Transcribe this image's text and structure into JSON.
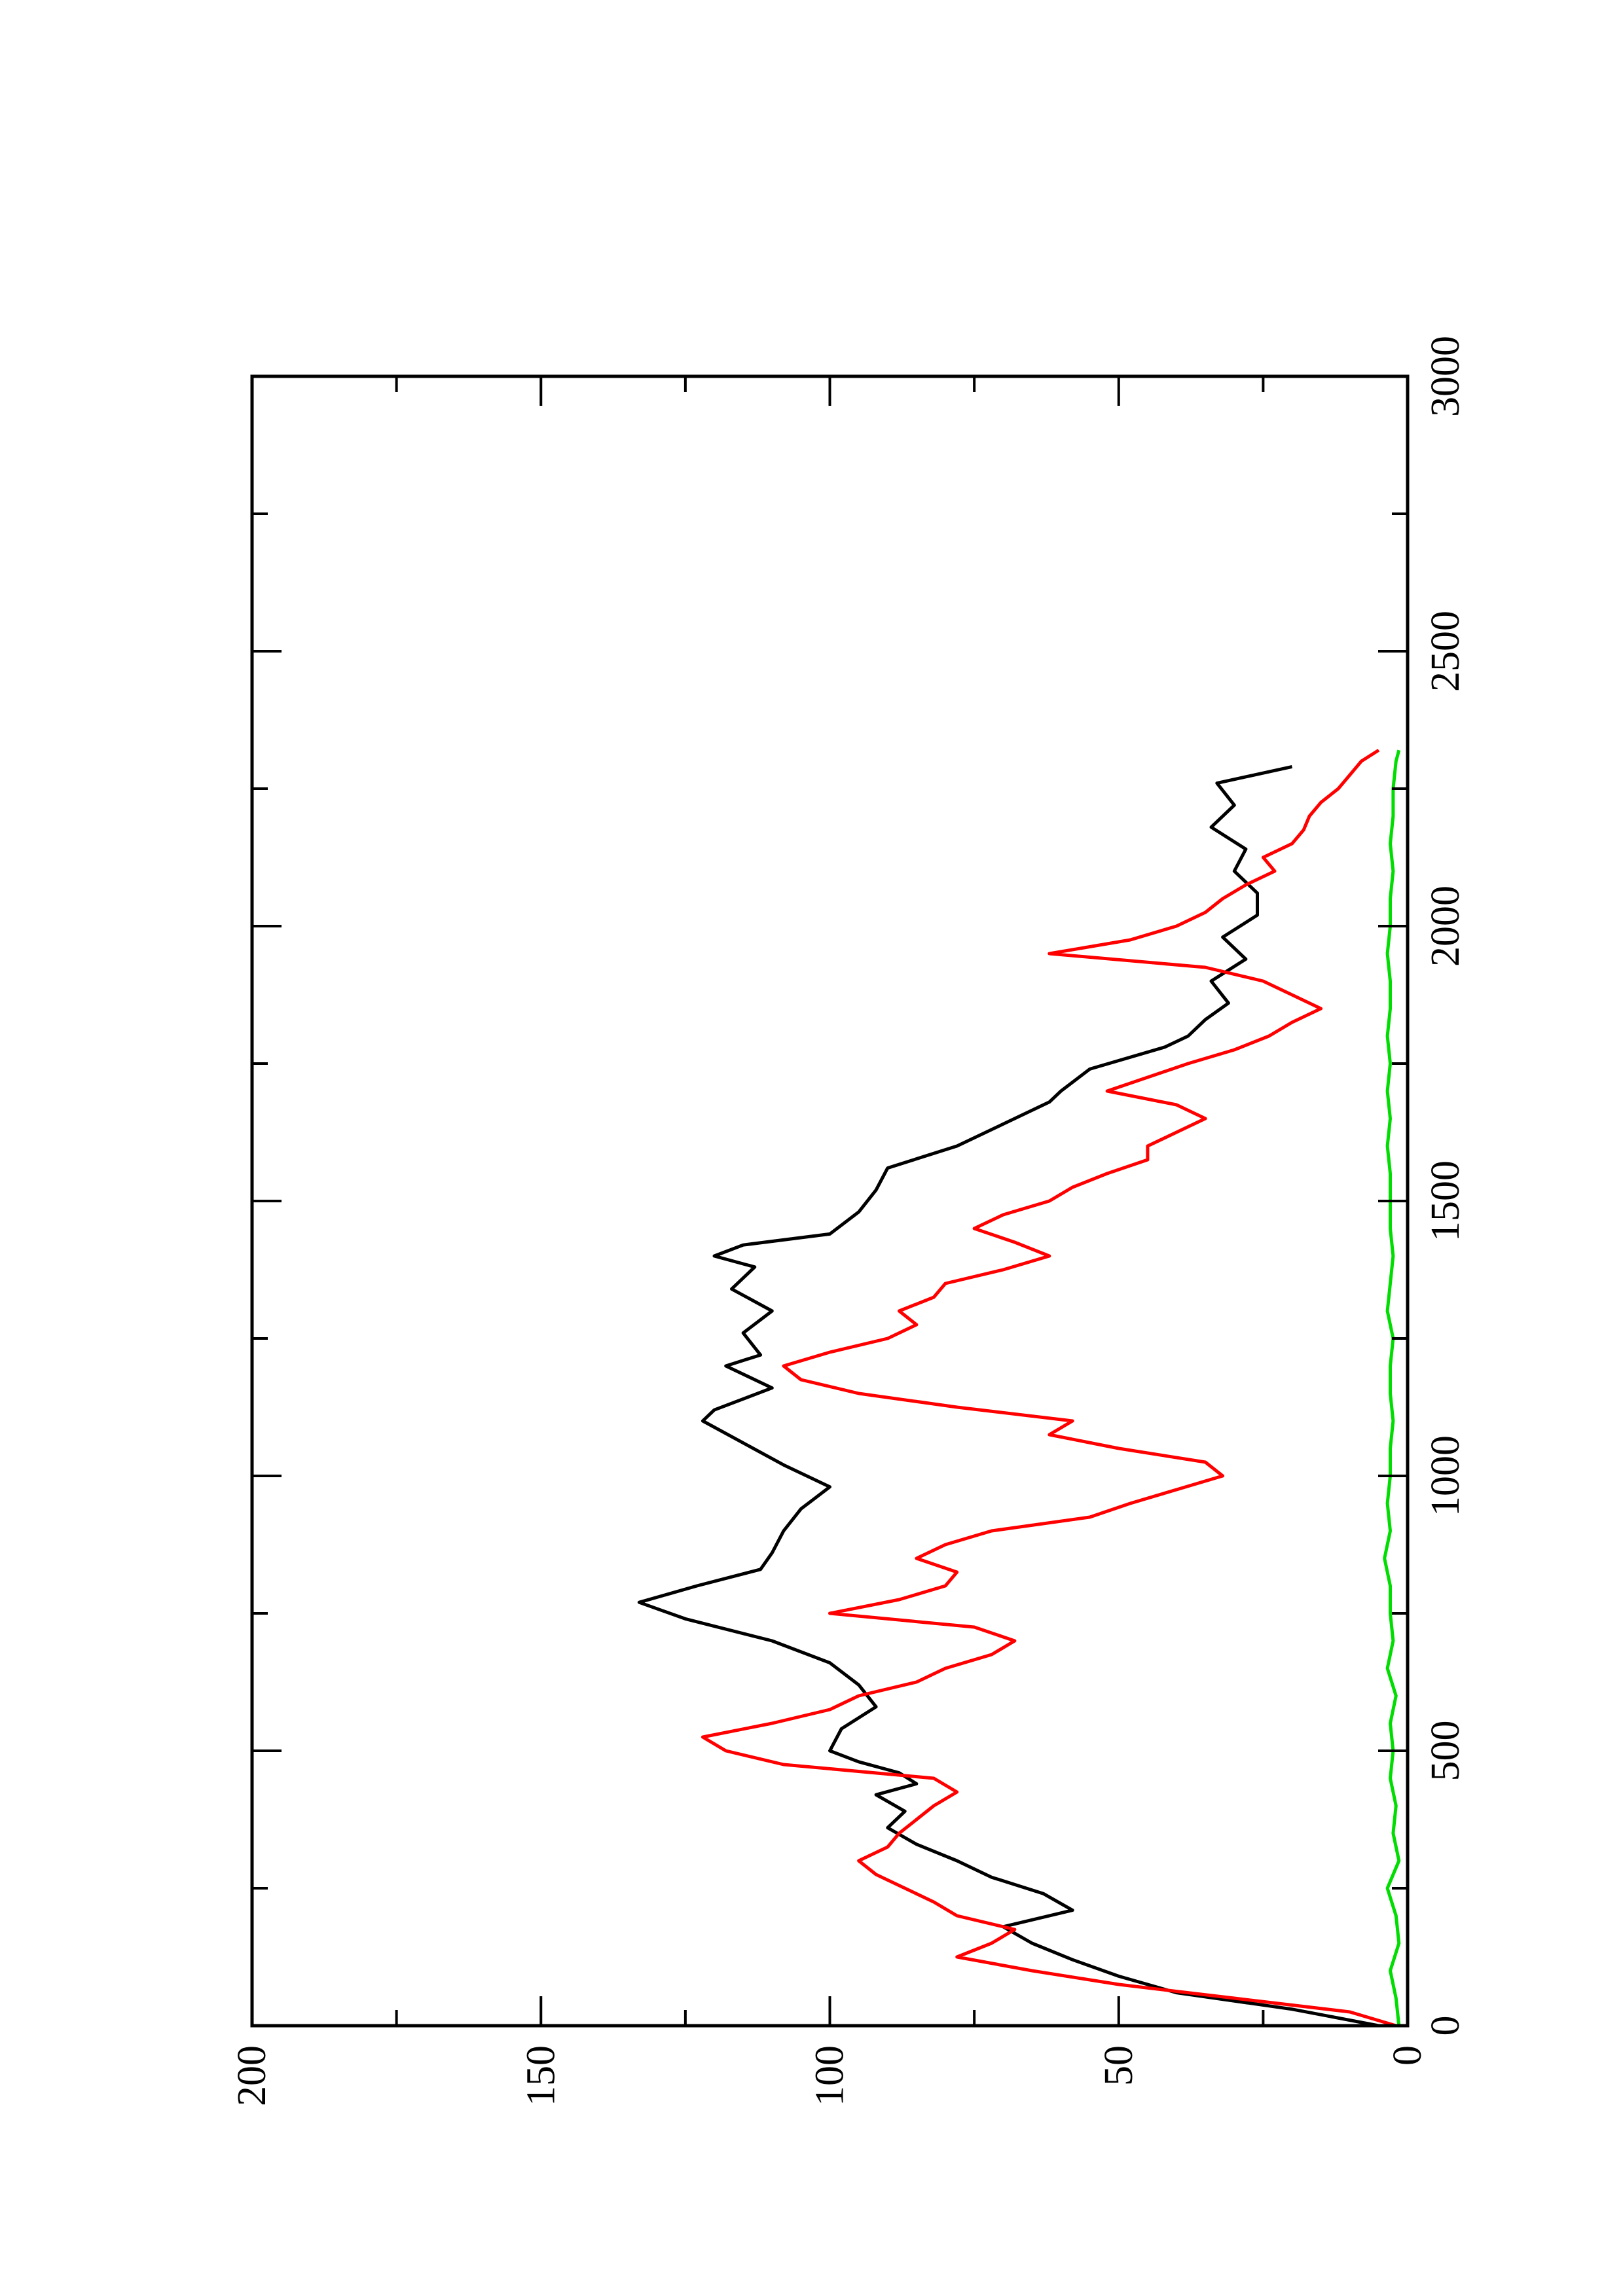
{
  "chart_data": {
    "type": "line",
    "orientation": "rotated-90-ccw",
    "title": "",
    "xlabel": "",
    "ylabel": "",
    "xlim": [
      0,
      3000
    ],
    "ylim": [
      0,
      200
    ],
    "x_ticks": [
      0,
      500,
      1000,
      1500,
      2000,
      2500,
      3000
    ],
    "y_ticks": [
      0,
      50,
      100,
      150,
      200
    ],
    "x_minor_ticks": [
      250,
      750,
      1250,
      1750,
      2250,
      2750
    ],
    "y_minor_ticks": [
      25,
      75,
      125,
      175
    ],
    "grid": false,
    "legend": "none",
    "series": [
      {
        "color": "#000000",
        "x": [
          0,
          30,
          60,
          90,
          120,
          150,
          180,
          210,
          240,
          270,
          300,
          330,
          360,
          390,
          420,
          440,
          460,
          480,
          500,
          540,
          580,
          620,
          660,
          700,
          740,
          770,
          800,
          830,
          860,
          900,
          940,
          980,
          1020,
          1060,
          1100,
          1120,
          1160,
          1200,
          1220,
          1260,
          1300,
          1340,
          1380,
          1400,
          1420,
          1440,
          1480,
          1520,
          1560,
          1600,
          1640,
          1680,
          1700,
          1740,
          1780,
          1800,
          1830,
          1860,
          1900,
          1940,
          1980,
          2020,
          2060,
          2100,
          2140,
          2180,
          2220,
          2260,
          2290
        ],
        "y": [
          5,
          20,
          40,
          50,
          58,
          65,
          70,
          58,
          63,
          72,
          78,
          85,
          90,
          87,
          92,
          85,
          88,
          95,
          100,
          98,
          92,
          95,
          100,
          110,
          125,
          133,
          123,
          112,
          110,
          108,
          105,
          100,
          108,
          115,
          122,
          120,
          110,
          118,
          112,
          115,
          110,
          117,
          113,
          120,
          115,
          100,
          95,
          92,
          90,
          78,
          70,
          62,
          60,
          55,
          42,
          38,
          35,
          31,
          34,
          28,
          32,
          26,
          26,
          30,
          28,
          34,
          30,
          33,
          20
        ]
      },
      {
        "color": "#ff0000",
        "x": [
          0,
          25,
          50,
          75,
          100,
          125,
          150,
          175,
          200,
          225,
          250,
          275,
          300,
          325,
          350,
          375,
          400,
          425,
          450,
          475,
          500,
          525,
          550,
          575,
          600,
          625,
          650,
          675,
          700,
          725,
          750,
          775,
          800,
          825,
          850,
          875,
          900,
          925,
          950,
          975,
          1000,
          1025,
          1050,
          1075,
          1100,
          1125,
          1150,
          1175,
          1200,
          1225,
          1250,
          1275,
          1300,
          1325,
          1350,
          1375,
          1400,
          1425,
          1450,
          1475,
          1500,
          1525,
          1550,
          1575,
          1600,
          1625,
          1650,
          1675,
          1700,
          1725,
          1750,
          1775,
          1800,
          1825,
          1850,
          1875,
          1900,
          1925,
          1950,
          1975,
          2000,
          2025,
          2050,
          2075,
          2100,
          2125,
          2150,
          2175,
          2200,
          2225,
          2250,
          2275,
          2300,
          2320
        ],
        "y": [
          2,
          10,
          30,
          50,
          65,
          78,
          72,
          68,
          78,
          82,
          87,
          92,
          95,
          90,
          88,
          85,
          82,
          78,
          82,
          108,
          118,
          122,
          110,
          100,
          95,
          85,
          80,
          72,
          68,
          75,
          100,
          88,
          80,
          78,
          85,
          80,
          72,
          55,
          48,
          40,
          32,
          35,
          50,
          62,
          58,
          78,
          95,
          105,
          108,
          100,
          90,
          85,
          88,
          82,
          80,
          70,
          62,
          68,
          75,
          70,
          62,
          58,
          52,
          45,
          45,
          40,
          35,
          40,
          52,
          45,
          38,
          30,
          24,
          20,
          15,
          20,
          25,
          35,
          62,
          48,
          40,
          35,
          32,
          28,
          23,
          25,
          20,
          18,
          17,
          15,
          12,
          10,
          8,
          5
        ]
      },
      {
        "color": "#00dd00",
        "x": [
          0,
          50,
          100,
          150,
          200,
          250,
          300,
          350,
          400,
          450,
          500,
          550,
          600,
          650,
          700,
          750,
          800,
          850,
          900,
          950,
          1000,
          1050,
          1100,
          1150,
          1200,
          1250,
          1300,
          1350,
          1400,
          1450,
          1500,
          1550,
          1600,
          1650,
          1700,
          1750,
          1800,
          1850,
          1900,
          1950,
          2000,
          2050,
          2100,
          2150,
          2200,
          2250,
          2300,
          2320
        ],
        "y": [
          1.5,
          2,
          3,
          1.5,
          2,
          3.5,
          1.5,
          2.5,
          2,
          3,
          2.5,
          3,
          2,
          3.5,
          2.5,
          3,
          3,
          4,
          3,
          3.5,
          3,
          3,
          2.5,
          3,
          3,
          2.5,
          3.5,
          3,
          2.5,
          3,
          3,
          3,
          3.5,
          3,
          3.5,
          3,
          3.5,
          3,
          3,
          3.5,
          3,
          3,
          2.5,
          3,
          2.5,
          2.5,
          2,
          1.5
        ]
      }
    ]
  }
}
